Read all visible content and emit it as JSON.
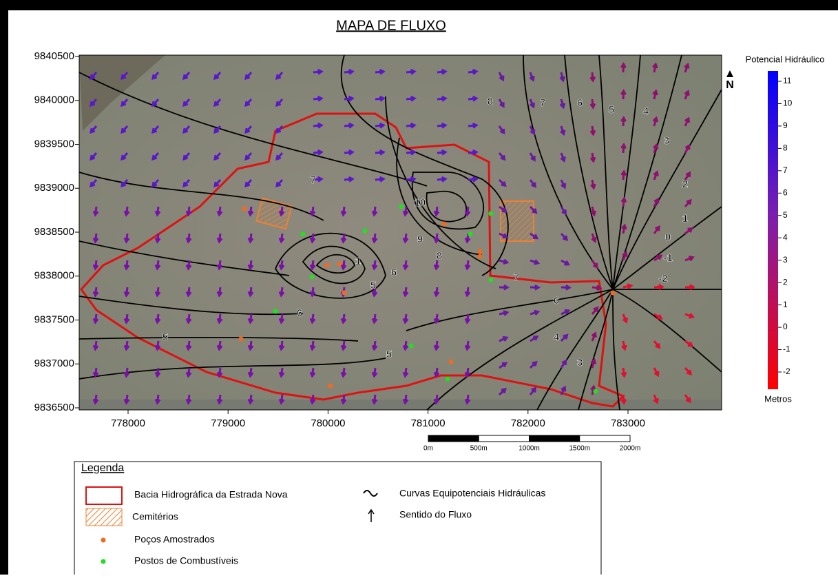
{
  "map": {
    "title": "MAPA DE FLUXO",
    "y_ticks": [
      9840500,
      9840000,
      9839500,
      9839000,
      9838500,
      9838000,
      9837500,
      9837000,
      9836500
    ],
    "x_ticks": [
      778000,
      779000,
      780000,
      781000,
      782000,
      783000
    ],
    "north": "N",
    "colorbar": {
      "title": "Potencial Hidráulico",
      "unit": "Metros",
      "ticks": [
        11,
        10,
        9,
        8,
        7,
        6,
        5,
        4,
        3,
        2,
        1,
        0,
        -1,
        -2
      ]
    },
    "scale_bar": [
      "0m",
      "500m",
      "1000m",
      "1500m",
      "2000m"
    ],
    "contour_labels": [
      8,
      7,
      6,
      5,
      4,
      3,
      2,
      1,
      0,
      -1,
      -2,
      10,
      9,
      8,
      7,
      6,
      5,
      6,
      6,
      5,
      5,
      4,
      3,
      7,
      1
    ],
    "legend": {
      "title": "Legenda",
      "items": [
        "Bacia Hidrográfica da Estrada Nova",
        "Cemitérios",
        "Poços Amostrados",
        "Postos de Combustíveis",
        "Curvas Equipotenciais Hidráulicas",
        "Sentido do Fluxo"
      ]
    }
  }
}
